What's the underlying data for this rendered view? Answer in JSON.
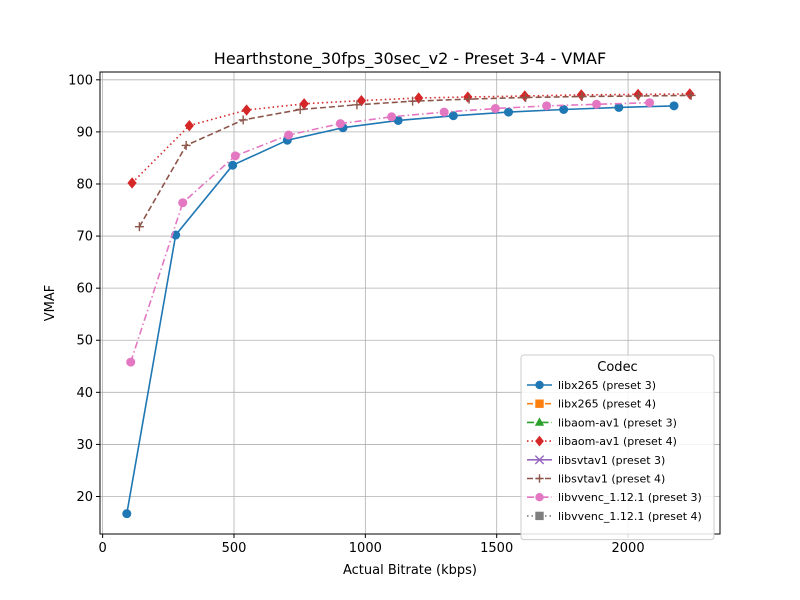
{
  "chart_data": {
    "type": "line",
    "title": "Hearthstone_30fps_30sec_v2 - Preset 3-4 - VMAF",
    "xlabel": "Actual Bitrate (kbps)",
    "ylabel": "VMAF",
    "xlim": [
      -10,
      2350
    ],
    "ylim": [
      12.8,
      101.5
    ],
    "xticks": [
      0,
      500,
      1000,
      1500,
      2000
    ],
    "yticks": [
      20,
      30,
      40,
      50,
      60,
      70,
      80,
      90,
      100
    ],
    "grid": true,
    "legend": {
      "title": "Codec",
      "placement": "lower-right"
    },
    "series": [
      {
        "name": "libx265 (preset 3)",
        "color": "#1f77b4",
        "marker": "circle",
        "dash": "solid",
        "x": [
          92,
          278,
          495,
          703,
          915,
          1125,
          1335,
          1545,
          1755,
          1965,
          2175
        ],
        "y": [
          16.7,
          70.2,
          83.6,
          88.4,
          90.8,
          92.2,
          93.1,
          93.8,
          94.3,
          94.7,
          95.0
        ]
      },
      {
        "name": "libx265 (preset 4)",
        "color": "#ff7f0e",
        "marker": "square",
        "dash": "dashed",
        "x": [],
        "y": []
      },
      {
        "name": "libaom-av1 (preset 3)",
        "color": "#2ca02c",
        "marker": "triangle",
        "dash": "dashdot",
        "x": [],
        "y": []
      },
      {
        "name": "libaom-av1 (preset 4)",
        "color": "#d62728",
        "marker": "diamond",
        "dash": "dotted",
        "x": [
          112,
          330,
          548,
          767,
          985,
          1203,
          1390,
          1607,
          1822,
          2038,
          2235
        ],
        "y": [
          80.2,
          91.2,
          94.2,
          95.4,
          96.0,
          96.5,
          96.7,
          96.9,
          97.1,
          97.2,
          97.3
        ]
      },
      {
        "name": "libsvtav1 (preset 3)",
        "color": "#9467bd",
        "marker": "x",
        "dash": "solid",
        "x": [],
        "y": []
      },
      {
        "name": "libsvtav1 (preset 4)",
        "color": "#8c564b",
        "marker": "plus",
        "dash": "dashed",
        "x": [
          140,
          318,
          535,
          752,
          968,
          1180,
          1395,
          1610,
          1825,
          2040,
          2240
        ],
        "y": [
          71.8,
          87.4,
          92.3,
          94.3,
          95.2,
          95.9,
          96.3,
          96.6,
          96.8,
          96.9,
          97.0
        ]
      },
      {
        "name": "libvvenc_1.12.1 (preset 3)",
        "color": "#e377c2",
        "marker": "circle",
        "dash": "dashdot",
        "x": [
          107,
          305,
          505,
          708,
          905,
          1100,
          1300,
          1495,
          1690,
          1880,
          2082
        ],
        "y": [
          45.8,
          76.4,
          85.4,
          89.4,
          91.6,
          92.9,
          93.8,
          94.5,
          95.0,
          95.3,
          95.6
        ]
      },
      {
        "name": "libvvenc_1.12.1 (preset 4)",
        "color": "#7f7f7f",
        "marker": "square",
        "dash": "dotted",
        "x": [],
        "y": []
      }
    ]
  }
}
